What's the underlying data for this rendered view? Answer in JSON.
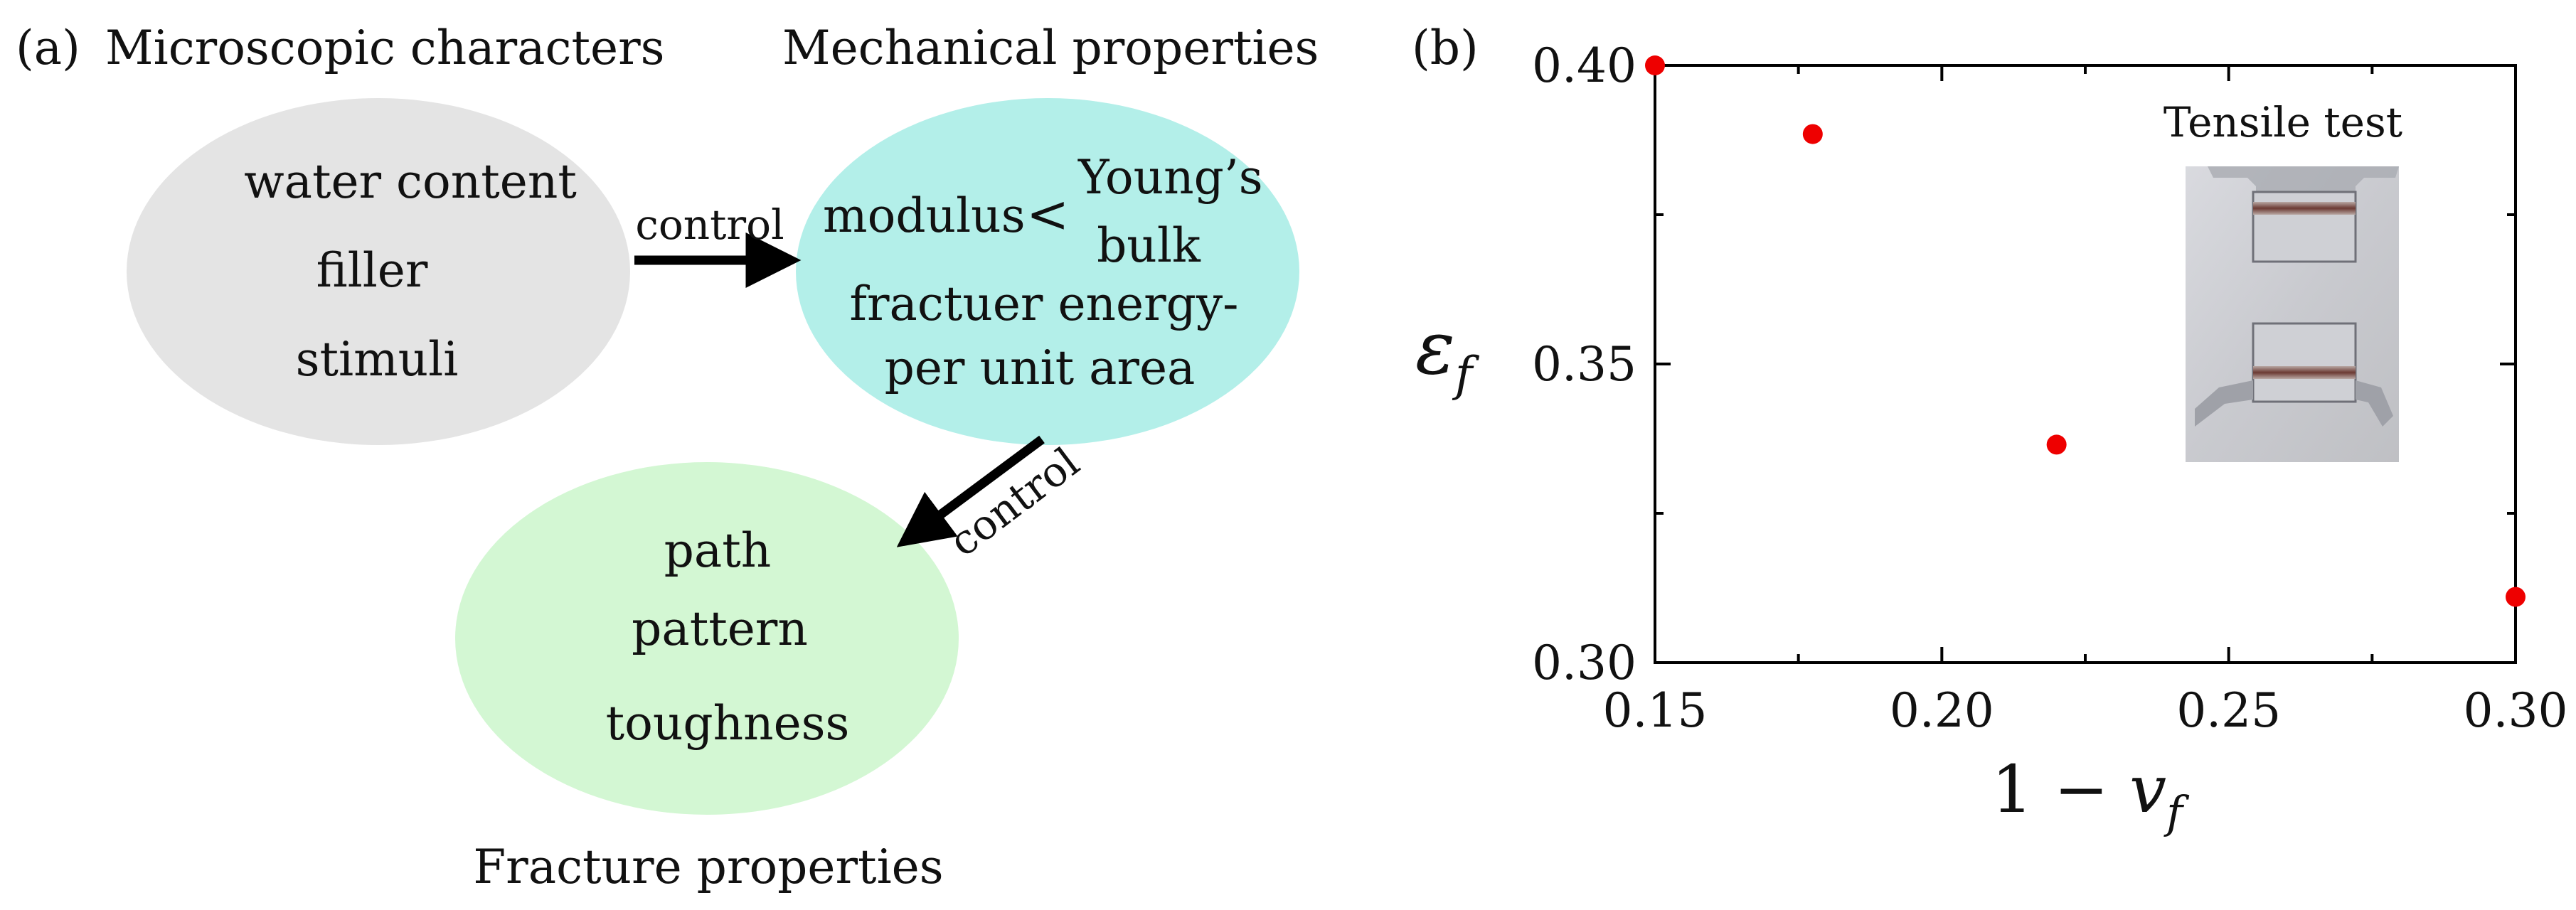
{
  "panel_a": {
    "label": "(a)",
    "title_micro": "Microscopic characters",
    "title_mech": "Mechanical properties",
    "title_fracture": "Fracture properties",
    "micro_items": [
      "water content",
      "filler",
      "stimuli"
    ],
    "mech": {
      "modulus": "modulus",
      "bracket": "<",
      "youngs": "Young’s",
      "bulk": "bulk",
      "line3": "fractuer energy-",
      "line4": "per unit area"
    },
    "fracture_items": [
      "path",
      "pattern",
      "toughness"
    ],
    "arrow1_label": "control",
    "arrow2_label": "control"
  },
  "panel_b": {
    "label": "(b)",
    "inset_title": "Tensile test"
  },
  "colors": {
    "micro_fill": "#e4e4e4",
    "mech_fill": "#b3efe9",
    "fracture_fill": "#d3f7d3",
    "marker": "#ee0000"
  },
  "chart_data": {
    "type": "scatter",
    "xlabel": "1 − v_f",
    "ylabel": "ε_f",
    "xlim": [
      0.15,
      0.3
    ],
    "ylim": [
      0.3,
      0.4
    ],
    "xticks": [
      0.15,
      0.2,
      0.25,
      0.3
    ],
    "xtick_labels": [
      "0.15",
      "0.20",
      "0.25",
      "0.30"
    ],
    "yticks": [
      0.3,
      0.35,
      0.4
    ],
    "ytick_labels": [
      "0.30",
      "0.35",
      "0.40"
    ],
    "grid": false,
    "series": [
      {
        "x": [
          0.15,
          0.1775,
          0.22,
          0.3
        ],
        "y": [
          0.4,
          0.3885,
          0.3365,
          0.311
        ]
      }
    ]
  }
}
